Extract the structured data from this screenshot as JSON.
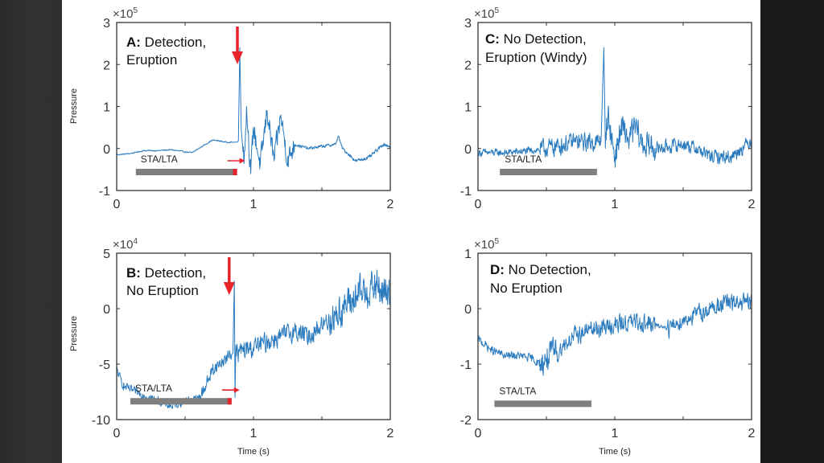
{
  "chart_data": [
    {
      "id": "A",
      "type": "line",
      "panel_label_bold": "A:",
      "title_line1": " Detection,",
      "title_line2": "Eruption",
      "exponent_label": "×10",
      "exponent_power": "5",
      "xlabel": "",
      "ylabel": "Pressure",
      "xlim": [
        0,
        2
      ],
      "ylim": [
        -1,
        3
      ],
      "xticks": [
        0,
        1,
        2
      ],
      "yticks": [
        -1,
        0,
        1,
        2,
        3
      ],
      "xtick_labels": [
        "0",
        "1",
        "2"
      ],
      "ytick_labels": [
        "-1",
        "0",
        "1",
        "2",
        "3"
      ],
      "stalta_label": "STA/LTA",
      "stalta_window": [
        0.14,
        0.88
      ],
      "detection": true,
      "detection_time": 0.9,
      "series_color": "#2b7bbf",
      "series_keypoints": [
        [
          0,
          -0.15
        ],
        [
          0.1,
          -0.12
        ],
        [
          0.2,
          -0.05
        ],
        [
          0.3,
          -0.05
        ],
        [
          0.4,
          -0.03
        ],
        [
          0.5,
          -0.08
        ],
        [
          0.55,
          -0.1
        ],
        [
          0.6,
          0.0
        ],
        [
          0.7,
          0.2
        ],
        [
          0.75,
          0.18
        ],
        [
          0.8,
          0.15
        ],
        [
          0.88,
          0.15
        ],
        [
          0.89,
          0.2
        ],
        [
          0.9,
          2.4
        ],
        [
          0.91,
          0.5
        ],
        [
          0.93,
          -0.3
        ],
        [
          0.95,
          1.0
        ],
        [
          0.98,
          -0.6
        ],
        [
          1.0,
          0.5
        ],
        [
          1.05,
          -0.4
        ],
        [
          1.1,
          0.9
        ],
        [
          1.15,
          -0.3
        ],
        [
          1.2,
          0.8
        ],
        [
          1.25,
          -0.3
        ],
        [
          1.3,
          0.1
        ],
        [
          1.4,
          0.0
        ],
        [
          1.5,
          0.05
        ],
        [
          1.6,
          0.1
        ],
        [
          1.62,
          0.3
        ],
        [
          1.65,
          0.0
        ],
        [
          1.75,
          -0.3
        ],
        [
          1.85,
          -0.2
        ],
        [
          1.95,
          0.1
        ],
        [
          2.0,
          0.05
        ]
      ],
      "series_noise": [
        [
          0,
          0.85,
          0.02
        ],
        [
          0.88,
          0.92,
          0.02
        ],
        [
          0.92,
          1.3,
          0.35
        ],
        [
          1.3,
          1.7,
          0.05
        ],
        [
          1.7,
          2.0,
          0.06
        ]
      ]
    },
    {
      "id": "C",
      "type": "line",
      "panel_label_bold": "C:",
      "title_line1": " No Detection,",
      "title_line2": "Eruption (Windy)",
      "exponent_label": "×10",
      "exponent_power": "5",
      "xlabel": "",
      "ylabel": "",
      "xlim": [
        0,
        2
      ],
      "ylim": [
        -1,
        3
      ],
      "xticks": [
        0,
        1,
        2
      ],
      "yticks": [
        -1,
        0,
        1,
        2,
        3
      ],
      "xtick_labels": [
        "0",
        "1",
        "2"
      ],
      "ytick_labels": [
        "-1",
        "0",
        "1",
        "2",
        "3"
      ],
      "stalta_label": "STA/LTA",
      "stalta_window": [
        0.16,
        0.87
      ],
      "detection": false,
      "series_color": "#2b7bbf",
      "series_keypoints": [
        [
          0,
          -0.1
        ],
        [
          0.2,
          -0.1
        ],
        [
          0.4,
          -0.05
        ],
        [
          0.5,
          0.0
        ],
        [
          0.7,
          0.15
        ],
        [
          0.88,
          0.15
        ],
        [
          0.9,
          0.2
        ],
        [
          0.92,
          2.4
        ],
        [
          0.93,
          0.3
        ],
        [
          0.95,
          0.8
        ],
        [
          1.0,
          -0.2
        ],
        [
          1.05,
          0.5
        ],
        [
          1.1,
          0.2
        ],
        [
          1.15,
          0.5
        ],
        [
          1.2,
          0.1
        ],
        [
          1.3,
          0.0
        ],
        [
          1.5,
          0.1
        ],
        [
          1.6,
          0.0
        ],
        [
          1.7,
          -0.2
        ],
        [
          1.85,
          -0.2
        ],
        [
          2.0,
          0.2
        ]
      ],
      "series_noise": [
        [
          0,
          0.45,
          0.12
        ],
        [
          0.45,
          0.9,
          0.3
        ],
        [
          0.93,
          1.3,
          0.45
        ],
        [
          1.3,
          2.0,
          0.22
        ]
      ]
    },
    {
      "id": "B",
      "type": "line",
      "panel_label_bold": "B:",
      "title_line1": " Detection,",
      "title_line2": "No Eruption",
      "exponent_label": "×10",
      "exponent_power": "4",
      "xlabel": "Time (s)",
      "ylabel": "Pressure",
      "xlim": [
        0,
        2
      ],
      "ylim": [
        -10,
        5
      ],
      "xticks": [
        0,
        1,
        2
      ],
      "yticks": [
        -10,
        -5,
        0,
        5
      ],
      "xtick_labels": [
        "0",
        "1",
        "2"
      ],
      "ytick_labels": [
        "-10",
        "-5",
        "0",
        "5"
      ],
      "stalta_label": "STA/LTA",
      "stalta_window": [
        0.1,
        0.84
      ],
      "detection": true,
      "detection_time": 0.84,
      "series_color": "#2b7bbf",
      "series_keypoints": [
        [
          0,
          -5.5
        ],
        [
          0.05,
          -7.0
        ],
        [
          0.1,
          -7.3
        ],
        [
          0.2,
          -7.8
        ],
        [
          0.3,
          -8.3
        ],
        [
          0.4,
          -8.8
        ],
        [
          0.5,
          -8.3
        ],
        [
          0.6,
          -8.1
        ],
        [
          0.65,
          -7.0
        ],
        [
          0.7,
          -5.5
        ],
        [
          0.8,
          -4.5
        ],
        [
          0.85,
          -4.0
        ],
        [
          0.86,
          2.5
        ],
        [
          0.865,
          -8.0
        ],
        [
          0.87,
          -4.0
        ],
        [
          1.0,
          -3.5
        ],
        [
          1.1,
          -3.0
        ],
        [
          1.2,
          -2.5
        ],
        [
          1.3,
          -2.0
        ],
        [
          1.4,
          -2.5
        ],
        [
          1.5,
          -1.5
        ],
        [
          1.6,
          -0.5
        ],
        [
          1.7,
          0.5
        ],
        [
          1.8,
          1.5
        ],
        [
          1.9,
          2.0
        ],
        [
          2.0,
          1.0
        ]
      ],
      "series_noise": [
        [
          0,
          0.6,
          0.5
        ],
        [
          0.6,
          0.84,
          0.8
        ],
        [
          0.87,
          1.55,
          1.2
        ],
        [
          1.55,
          2.0,
          2.2
        ]
      ]
    },
    {
      "id": "D",
      "type": "line",
      "panel_label_bold": "D:",
      "title_line1": " No Detection,",
      "title_line2": "No Eruption",
      "exponent_label": "×10",
      "exponent_power": "5",
      "xlabel": "Time (s)",
      "ylabel": "",
      "xlim": [
        0,
        2
      ],
      "ylim": [
        -2,
        1
      ],
      "xticks": [
        0,
        1,
        2
      ],
      "yticks": [
        -2,
        -1,
        0,
        1
      ],
      "xtick_labels": [
        "0",
        "1",
        "2"
      ],
      "ytick_labels": [
        "-2",
        "-1",
        "0",
        "1"
      ],
      "stalta_label": "STA/LTA",
      "stalta_window": [
        0.12,
        0.83
      ],
      "detection": false,
      "series_color": "#2b7bbf",
      "series_keypoints": [
        [
          0,
          -0.55
        ],
        [
          0.1,
          -0.75
        ],
        [
          0.2,
          -0.85
        ],
        [
          0.3,
          -0.85
        ],
        [
          0.4,
          -0.9
        ],
        [
          0.45,
          -1.0
        ],
        [
          0.5,
          -0.9
        ],
        [
          0.6,
          -0.7
        ],
        [
          0.7,
          -0.5
        ],
        [
          0.8,
          -0.4
        ],
        [
          0.9,
          -0.35
        ],
        [
          1.0,
          -0.3
        ],
        [
          1.1,
          -0.25
        ],
        [
          1.2,
          -0.25
        ],
        [
          1.3,
          -0.3
        ],
        [
          1.4,
          -0.35
        ],
        [
          1.5,
          -0.2
        ],
        [
          1.6,
          -0.1
        ],
        [
          1.7,
          0.0
        ],
        [
          1.8,
          0.1
        ],
        [
          1.9,
          0.1
        ],
        [
          2.0,
          0.1
        ]
      ],
      "series_noise": [
        [
          0,
          0.45,
          0.1
        ],
        [
          0.45,
          0.6,
          0.35
        ],
        [
          0.6,
          1.3,
          0.22
        ],
        [
          1.3,
          1.38,
          0.05
        ],
        [
          1.38,
          2.0,
          0.22
        ]
      ]
    }
  ]
}
